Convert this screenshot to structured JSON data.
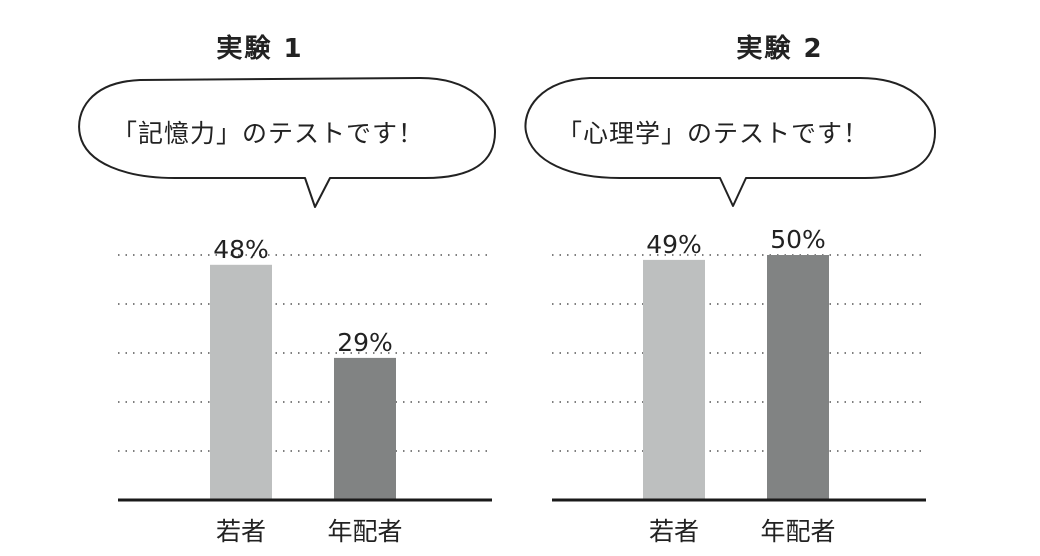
{
  "chart_data": [
    {
      "type": "bar",
      "title": "実験 1",
      "speech_bubble": "「記憶力」のテストです！",
      "categories": [
        "若者",
        "年配者"
      ],
      "values": [
        48,
        29
      ],
      "data_labels": [
        "48%",
        "29%"
      ],
      "ylim": [
        0,
        50
      ],
      "grid": true,
      "colors": [
        "#bdbfbf",
        "#818383"
      ]
    },
    {
      "type": "bar",
      "title": "実験 2",
      "speech_bubble": "「心理学」のテストです！",
      "categories": [
        "若者",
        "年配者"
      ],
      "values": [
        49,
        50
      ],
      "data_labels": [
        "49%",
        "50%"
      ],
      "ylim": [
        0,
        50
      ],
      "grid": true,
      "colors": [
        "#bdbfbf",
        "#818383"
      ]
    }
  ]
}
